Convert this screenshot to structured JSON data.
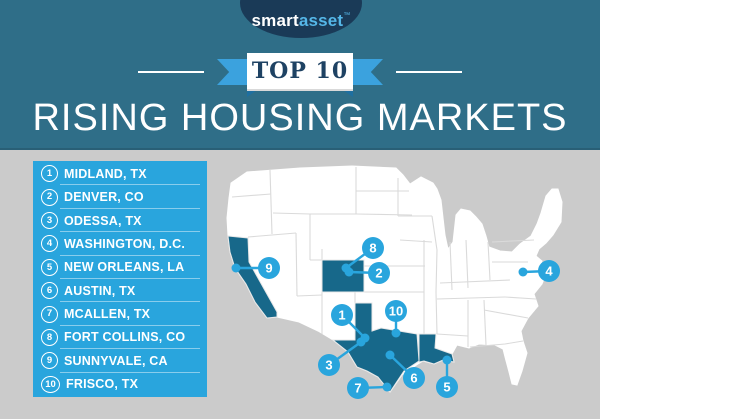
{
  "header": {
    "logo": {
      "part1": "smart",
      "part2": "asset",
      "tm": "™"
    },
    "ribbon_label": "TOP 10",
    "title": "RISING HOUSING MARKETS"
  },
  "list": {
    "items": [
      {
        "rank": "1",
        "label": "MIDLAND, TX"
      },
      {
        "rank": "2",
        "label": "DENVER, CO"
      },
      {
        "rank": "3",
        "label": "ODESSA, TX"
      },
      {
        "rank": "4",
        "label": "WASHINGTON, D.C."
      },
      {
        "rank": "5",
        "label": "NEW ORLEANS, LA"
      },
      {
        "rank": "6",
        "label": "AUSTIN, TX"
      },
      {
        "rank": "7",
        "label": "MCALLEN, TX"
      },
      {
        "rank": "8",
        "label": "FORT COLLINS, CO"
      },
      {
        "rank": "9",
        "label": "SUNNYVALE, CA"
      },
      {
        "rank": "10",
        "label": "FRISCO, TX"
      }
    ]
  },
  "map": {
    "highlighted_states": [
      "California",
      "Colorado",
      "Texas",
      "Louisiana"
    ],
    "markers": [
      {
        "rank": "1",
        "circle": [
          342,
          315
        ],
        "dot": [
          365,
          338
        ]
      },
      {
        "rank": "2",
        "circle": [
          379,
          273
        ],
        "dot": [
          349,
          272
        ]
      },
      {
        "rank": "3",
        "circle": [
          329,
          365
        ],
        "dot": [
          361,
          342
        ]
      },
      {
        "rank": "4",
        "circle": [
          549,
          271
        ],
        "dot": [
          523,
          272
        ]
      },
      {
        "rank": "5",
        "circle": [
          447,
          387
        ],
        "dot": [
          447,
          360
        ]
      },
      {
        "rank": "6",
        "circle": [
          414,
          378
        ],
        "dot": [
          390,
          355
        ]
      },
      {
        "rank": "7",
        "circle": [
          358,
          388
        ],
        "dot": [
          387,
          387
        ]
      },
      {
        "rank": "8",
        "circle": [
          373,
          248
        ],
        "dot": [
          346,
          268
        ]
      },
      {
        "rank": "9",
        "circle": [
          269,
          268
        ],
        "dot": [
          236,
          268
        ]
      },
      {
        "rank": "10",
        "circle": [
          396,
          311
        ],
        "dot": [
          396,
          333
        ]
      }
    ]
  },
  "colors": {
    "header_teal": "#2f6e88",
    "background_gray": "#cbcbcb",
    "accent_blue": "#29a5dd",
    "ribbon_blue": "#3ba2de",
    "logo_navy": "#1a3a57",
    "state_teal": "#17688a"
  }
}
